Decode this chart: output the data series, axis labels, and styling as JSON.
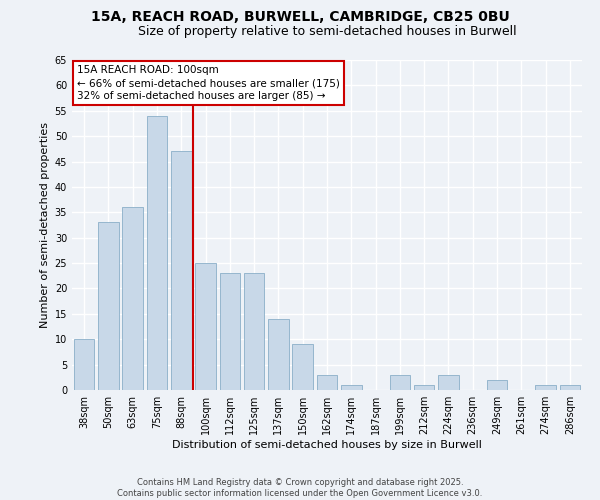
{
  "title1": "15A, REACH ROAD, BURWELL, CAMBRIDGE, CB25 0BU",
  "title2": "Size of property relative to semi-detached houses in Burwell",
  "xlabel": "Distribution of semi-detached houses by size in Burwell",
  "ylabel": "Number of semi-detached properties",
  "categories": [
    "38sqm",
    "50sqm",
    "63sqm",
    "75sqm",
    "88sqm",
    "100sqm",
    "112sqm",
    "125sqm",
    "137sqm",
    "150sqm",
    "162sqm",
    "174sqm",
    "187sqm",
    "199sqm",
    "212sqm",
    "224sqm",
    "236sqm",
    "249sqm",
    "261sqm",
    "274sqm",
    "286sqm"
  ],
  "values": [
    10,
    33,
    36,
    54,
    47,
    25,
    23,
    23,
    14,
    9,
    3,
    1,
    0,
    3,
    1,
    3,
    0,
    2,
    0,
    1,
    1
  ],
  "bar_color": "#c8d8e8",
  "bar_edge_color": "#8aafc8",
  "highlight_line_color": "#cc0000",
  "annotation_title": "15A REACH ROAD: 100sqm",
  "annotation_line1": "← 66% of semi-detached houses are smaller (175)",
  "annotation_line2": "32% of semi-detached houses are larger (85) →",
  "annotation_box_edge_color": "#cc0000",
  "ylim": [
    0,
    65
  ],
  "yticks": [
    0,
    5,
    10,
    15,
    20,
    25,
    30,
    35,
    40,
    45,
    50,
    55,
    60,
    65
  ],
  "footer1": "Contains HM Land Registry data © Crown copyright and database right 2025.",
  "footer2": "Contains public sector information licensed under the Open Government Licence v3.0.",
  "bg_color": "#eef2f7",
  "plot_bg_color": "#eef2f7",
  "grid_color": "#ffffff",
  "title1_fontsize": 10,
  "title2_fontsize": 9,
  "xlabel_fontsize": 8,
  "ylabel_fontsize": 8,
  "tick_fontsize": 7,
  "annotation_fontsize": 7.5,
  "footer_fontsize": 6
}
